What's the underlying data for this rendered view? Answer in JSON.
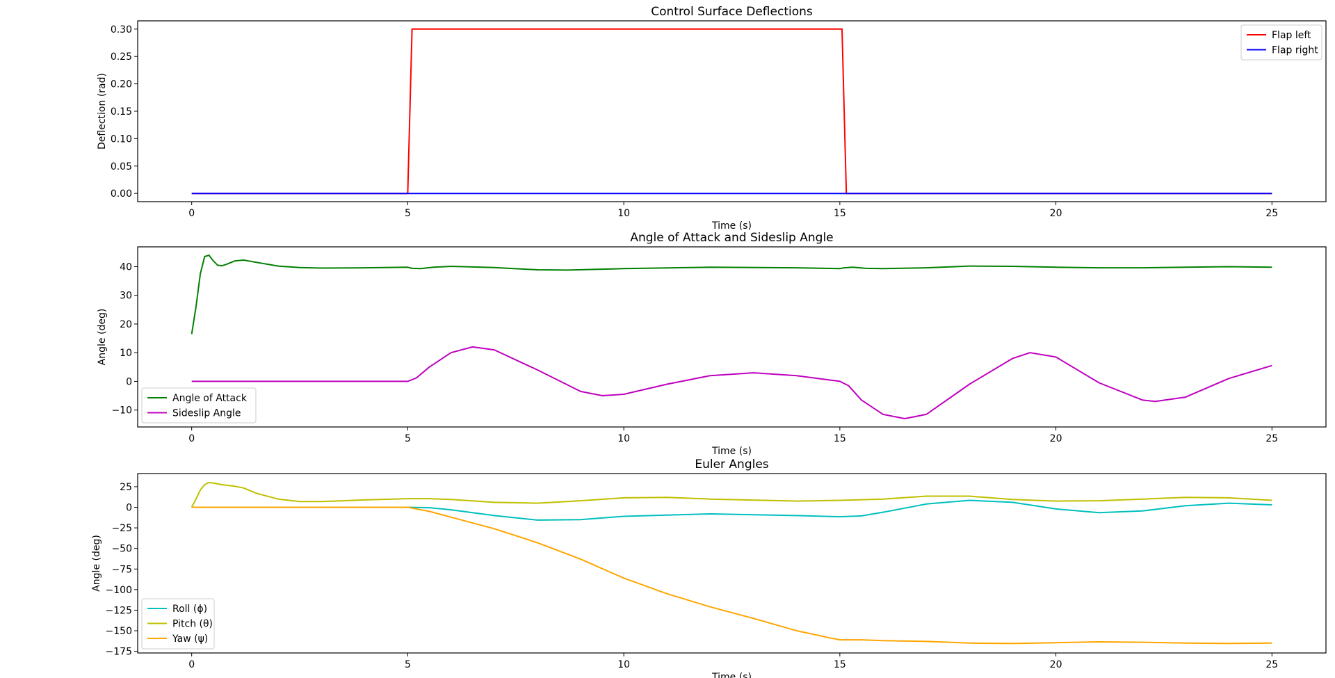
{
  "chart_data": [
    {
      "type": "line",
      "title": "Control Surface Deflections",
      "xlabel": "Time (s)",
      "ylabel": "Deflection (rad)",
      "xlim": [
        -1.25,
        26.25
      ],
      "ylim": [
        -0.015,
        0.315
      ],
      "xticks": [
        0,
        5,
        10,
        15,
        20,
        25
      ],
      "xtick_labels": [
        "0",
        "5",
        "10",
        "15",
        "20",
        "25"
      ],
      "yticks": [
        0.0,
        0.05,
        0.1,
        0.15,
        0.2,
        0.25,
        0.3
      ],
      "ytick_labels": [
        "0.00",
        "0.05",
        "0.10",
        "0.15",
        "0.20",
        "0.25",
        "0.30"
      ],
      "grid": false,
      "legend_position": "upper right",
      "series": [
        {
          "name": "Flap left",
          "color": "#ff0000",
          "x": [
            0,
            5.0,
            5.1,
            15.05,
            15.15,
            25
          ],
          "y": [
            0,
            0,
            0.3,
            0.3,
            0,
            0
          ]
        },
        {
          "name": "Flap right",
          "color": "#0000ff",
          "x": [
            0,
            25
          ],
          "y": [
            0,
            0
          ]
        }
      ]
    },
    {
      "type": "line",
      "title": "Angle of Attack and Sideslip Angle",
      "xlabel": "Time (s)",
      "ylabel": "Angle (deg)",
      "xlim": [
        -1.25,
        26.25
      ],
      "ylim": [
        -15.9,
        46.9
      ],
      "xticks": [
        0,
        5,
        10,
        15,
        20,
        25
      ],
      "xtick_labels": [
        "0",
        "5",
        "10",
        "15",
        "20",
        "25"
      ],
      "yticks": [
        -10,
        0,
        10,
        20,
        30,
        40
      ],
      "ytick_labels": [
        "−10",
        "0",
        "10",
        "20",
        "30",
        "40"
      ],
      "grid": false,
      "legend_position": "lower left",
      "series": [
        {
          "name": "Angle of Attack",
          "color": "#008000",
          "x": [
            0,
            0.1,
            0.2,
            0.3,
            0.4,
            0.5,
            0.6,
            0.7,
            0.8,
            1.0,
            1.2,
            1.5,
            2,
            2.5,
            3,
            4,
            5,
            5.1,
            5.3,
            5.6,
            6,
            7,
            8,
            8.7,
            10,
            12,
            14,
            15,
            15.1,
            15.3,
            15.6,
            16,
            17,
            18,
            19,
            20,
            21,
            22,
            23,
            24,
            25
          ],
          "y": [
            16.5,
            26,
            37.5,
            43.5,
            44,
            42,
            40.5,
            40.3,
            40.8,
            42,
            42.3,
            41.5,
            40.2,
            39.7,
            39.5,
            39.6,
            39.8,
            39.4,
            39.3,
            39.8,
            40.1,
            39.7,
            38.9,
            38.8,
            39.3,
            39.8,
            39.6,
            39.3,
            39.6,
            39.8,
            39.4,
            39.3,
            39.6,
            40.2,
            40.1,
            39.8,
            39.6,
            39.6,
            39.8,
            40.0,
            39.8
          ]
        },
        {
          "name": "Sideslip Angle",
          "color": "#bf00bf",
          "x": [
            0,
            5.0,
            5.2,
            5.5,
            6.0,
            6.5,
            7.0,
            8.0,
            9.0,
            9.5,
            10.0,
            11.0,
            12.0,
            13.0,
            14.0,
            15.0,
            15.2,
            15.5,
            16.0,
            16.5,
            17.0,
            18.0,
            19.0,
            19.4,
            20.0,
            21.0,
            22.0,
            22.3,
            23.0,
            24.0,
            25.0
          ],
          "y": [
            0,
            0,
            1.2,
            5,
            10,
            12,
            11,
            4,
            -3.5,
            -5,
            -4.5,
            -1,
            2,
            3,
            2,
            0,
            -1.5,
            -6.5,
            -11.5,
            -13,
            -11.5,
            -1,
            8,
            10,
            8.5,
            -0.5,
            -6.5,
            -7,
            -5.5,
            1,
            5.5
          ]
        }
      ]
    },
    {
      "type": "line",
      "title": "Euler Angles",
      "xlabel": "Time (s)",
      "ylabel": "Angle (deg)",
      "xlim": [
        -1.25,
        26.25
      ],
      "ylim": [
        -177,
        41
      ],
      "xticks": [
        0,
        5,
        10,
        15,
        20,
        25
      ],
      "xtick_labels": [
        "0",
        "5",
        "10",
        "15",
        "20",
        "25"
      ],
      "yticks": [
        -175,
        -150,
        -125,
        -100,
        -75,
        -50,
        -25,
        0,
        25
      ],
      "ytick_labels": [
        "−175",
        "−150",
        "−125",
        "−100",
        "−75",
        "−50",
        "−25",
        "0",
        "25"
      ],
      "grid": false,
      "legend_position": "lower left",
      "series": [
        {
          "name": "Roll (ϕ)",
          "color": "#00bfbf",
          "x": [
            0,
            5,
            5.5,
            6,
            7,
            8,
            9,
            10,
            12,
            14,
            15,
            15.5,
            16,
            17,
            18,
            19,
            20,
            21,
            22,
            23,
            24,
            25
          ],
          "y": [
            0,
            0,
            -0.5,
            -3,
            -10,
            -15.5,
            -15,
            -11,
            -8,
            -10,
            -11.5,
            -10.5,
            -6,
            4,
            8.5,
            6,
            -2,
            -6.5,
            -4.5,
            2,
            5,
            3
          ]
        },
        {
          "name": "Pitch (θ)",
          "color": "#bfbf00",
          "x": [
            0,
            0.1,
            0.2,
            0.3,
            0.4,
            0.5,
            0.7,
            1.0,
            1.2,
            1.5,
            2.0,
            2.5,
            3.0,
            4.0,
            5.0,
            5.5,
            6.0,
            7.0,
            8.0,
            9.0,
            10.0,
            11.0,
            12.0,
            14.0,
            15.0,
            16.0,
            17.0,
            18.0,
            19.0,
            20.0,
            21.0,
            22.0,
            23.0,
            24.0,
            25.0
          ],
          "y": [
            0,
            10,
            21,
            27.5,
            30,
            29.5,
            27.5,
            25.5,
            23.5,
            17,
            10,
            7,
            7,
            9,
            10.5,
            10.5,
            9.5,
            6,
            5,
            8,
            11.5,
            12,
            10,
            7.5,
            8.5,
            10,
            13.5,
            13.5,
            9.5,
            7.5,
            8,
            10,
            12,
            11.5,
            8.5
          ]
        },
        {
          "name": "Yaw (ψ)",
          "color": "#ffa500",
          "x": [
            0,
            5,
            5.5,
            6,
            7,
            8,
            9,
            10,
            11,
            12,
            13,
            14,
            14.8,
            15,
            15.5,
            16,
            17,
            18,
            19,
            20,
            21,
            22,
            23,
            24,
            25
          ],
          "y": [
            0,
            0,
            -5,
            -12,
            -26,
            -43,
            -63,
            -86,
            -105,
            -121,
            -135,
            -150,
            -159,
            -161,
            -161,
            -162,
            -163,
            -165,
            -165.5,
            -164.5,
            -163.5,
            -164,
            -165,
            -165.5,
            -165
          ]
        }
      ]
    }
  ]
}
